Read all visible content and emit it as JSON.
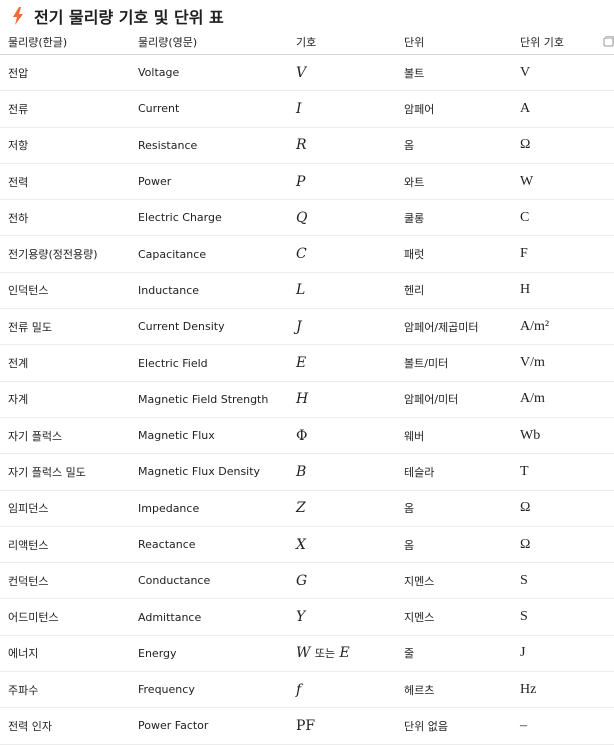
{
  "title": "전기 물리량 기호 및 단위 표",
  "icon": "lightning-icon",
  "headers": [
    "물리량(한글)",
    "물리량(영문)",
    "기호",
    "단위",
    "단위 기호"
  ],
  "rows": [
    [
      "전압",
      "Voltage",
      "V",
      "볼트",
      "V"
    ],
    [
      "전류",
      "Current",
      "I",
      "암페어",
      "A"
    ],
    [
      "저항",
      "Resistance",
      "R",
      "옴",
      "Ω"
    ],
    [
      "전력",
      "Power",
      "P",
      "와트",
      "W"
    ],
    [
      "전하",
      "Electric Charge",
      "Q",
      "쿨롱",
      "C"
    ],
    [
      "전기용량(정전용량)",
      "Capacitance",
      "C",
      "패럿",
      "F"
    ],
    [
      "인덕턴스",
      "Inductance",
      "L",
      "헨리",
      "H"
    ],
    [
      "전류 밀도",
      "Current Density",
      "J",
      "암페어/제곱미터",
      "A/m²"
    ],
    [
      "전계",
      "Electric Field",
      "E",
      "볼트/미터",
      "V/m"
    ],
    [
      "자계",
      "Magnetic Field Strength",
      "H",
      "암페어/미터",
      "A/m"
    ],
    [
      "자기 플럭스",
      "Magnetic Flux",
      "Φ",
      "웨버",
      "Wb"
    ],
    [
      "자기 플럭스 밀도",
      "Magnetic Flux Density",
      "B",
      "테슬라",
      "T"
    ],
    [
      "임피던스",
      "Impedance",
      "Z",
      "옴",
      "Ω"
    ],
    [
      "리액턴스",
      "Reactance",
      "X",
      "옴",
      "Ω"
    ],
    [
      "컨덕턴스",
      "Conductance",
      "G",
      "지멘스",
      "S"
    ],
    [
      "어드미턴스",
      "Admittance",
      "Y",
      "지멘스",
      "S"
    ],
    [
      "에너지",
      "Energy",
      "W 또는 E",
      "줄",
      "J"
    ],
    [
      "주파수",
      "Frequency",
      "f",
      "헤르츠",
      "Hz"
    ],
    [
      "전력 인자",
      "Power Factor",
      "PF",
      "단위 없음",
      "–"
    ]
  ]
}
